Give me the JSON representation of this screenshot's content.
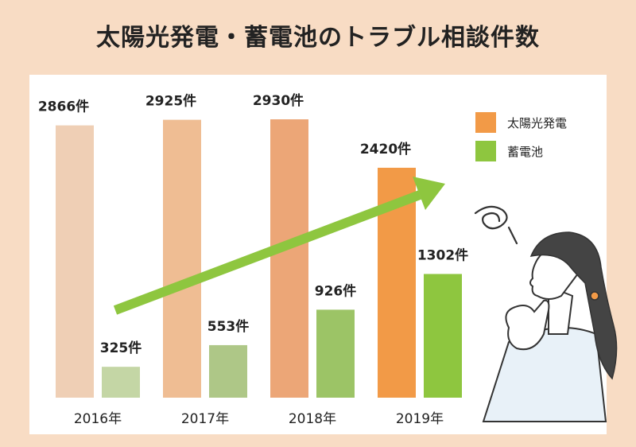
{
  "title": "太陽光発電・蓄電池のトラブル相談件数",
  "chart_data": {
    "type": "bar",
    "categories": [
      "2016年",
      "2017年",
      "2018年",
      "2019年"
    ],
    "series": [
      {
        "name": "太陽光発電",
        "values": [
          2866,
          2925,
          2930,
          2420
        ],
        "labels": [
          "2866件",
          "2925件",
          "2930件",
          "2420件"
        ],
        "colors": [
          "#efcfb5",
          "#efbd93",
          "#eca677",
          "#f29a47"
        ]
      },
      {
        "name": "蓄電池",
        "values": [
          325,
          553,
          926,
          1302
        ],
        "labels": [
          "325件",
          "553件",
          "926件",
          "1302件"
        ],
        "colors": [
          "#c4d6a5",
          "#aec787",
          "#9cc466",
          "#8ec63f"
        ]
      }
    ],
    "ylim": [
      0,
      3000
    ],
    "grid": false,
    "legend_position": "top-right",
    "trend_arrow": {
      "color": "#8ec63f"
    }
  }
}
